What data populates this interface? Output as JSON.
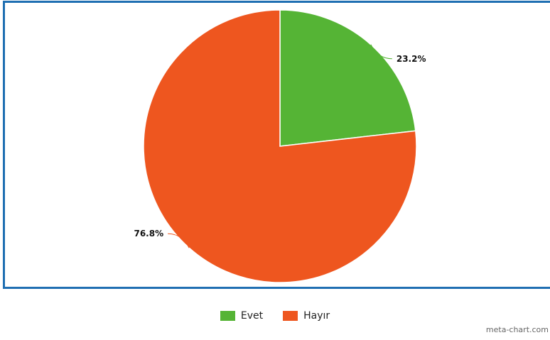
{
  "chart_data": {
    "type": "pie",
    "title": "",
    "slices": [
      {
        "label": "Evet",
        "value": 23.2,
        "color": "#55b435",
        "text": "23.2%"
      },
      {
        "label": "Hayır",
        "value": 76.8,
        "color": "#ee561f",
        "text": "76.8%"
      }
    ],
    "legend_position": "bottom-center",
    "start_angle": "12 o'clock",
    "direction": "clockwise"
  },
  "legend": {
    "items": [
      {
        "label": "Evet",
        "color": "#55b435"
      },
      {
        "label": "Hayır",
        "color": "#ee561f"
      }
    ]
  },
  "frame_color": "#1f6fb2",
  "credit": "meta-chart.com"
}
